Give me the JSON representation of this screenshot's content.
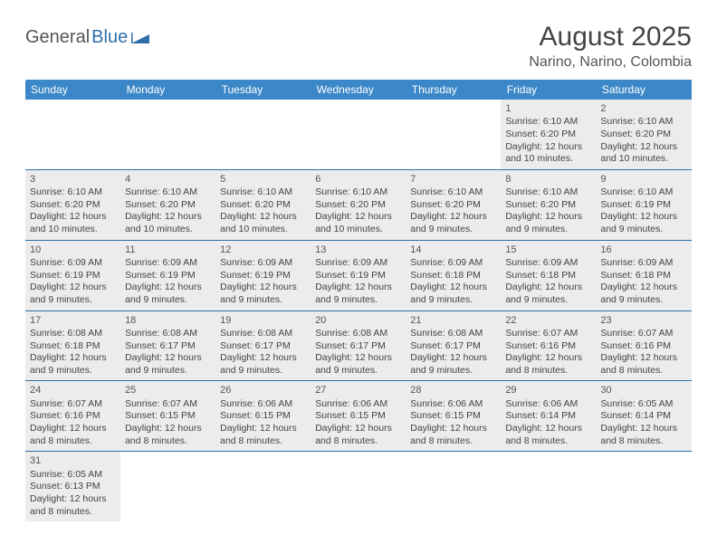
{
  "logo": {
    "part1": "General",
    "part2": "Blue"
  },
  "title": "August 2025",
  "location": "Narino, Narino, Colombia",
  "days": [
    "Sunday",
    "Monday",
    "Tuesday",
    "Wednesday",
    "Thursday",
    "Friday",
    "Saturday"
  ],
  "colors": {
    "header_bg": "#3b87c8",
    "row_border": "#2d6fa8",
    "alt_bg": "#ececec"
  },
  "weeks": [
    [
      null,
      null,
      null,
      null,
      null,
      {
        "n": "1",
        "sr": "6:10 AM",
        "ss": "6:20 PM",
        "dl": "12 hours and 10 minutes."
      },
      {
        "n": "2",
        "sr": "6:10 AM",
        "ss": "6:20 PM",
        "dl": "12 hours and 10 minutes."
      }
    ],
    [
      {
        "n": "3",
        "sr": "6:10 AM",
        "ss": "6:20 PM",
        "dl": "12 hours and 10 minutes."
      },
      {
        "n": "4",
        "sr": "6:10 AM",
        "ss": "6:20 PM",
        "dl": "12 hours and 10 minutes."
      },
      {
        "n": "5",
        "sr": "6:10 AM",
        "ss": "6:20 PM",
        "dl": "12 hours and 10 minutes."
      },
      {
        "n": "6",
        "sr": "6:10 AM",
        "ss": "6:20 PM",
        "dl": "12 hours and 10 minutes."
      },
      {
        "n": "7",
        "sr": "6:10 AM",
        "ss": "6:20 PM",
        "dl": "12 hours and 9 minutes."
      },
      {
        "n": "8",
        "sr": "6:10 AM",
        "ss": "6:20 PM",
        "dl": "12 hours and 9 minutes."
      },
      {
        "n": "9",
        "sr": "6:10 AM",
        "ss": "6:19 PM",
        "dl": "12 hours and 9 minutes."
      }
    ],
    [
      {
        "n": "10",
        "sr": "6:09 AM",
        "ss": "6:19 PM",
        "dl": "12 hours and 9 minutes."
      },
      {
        "n": "11",
        "sr": "6:09 AM",
        "ss": "6:19 PM",
        "dl": "12 hours and 9 minutes."
      },
      {
        "n": "12",
        "sr": "6:09 AM",
        "ss": "6:19 PM",
        "dl": "12 hours and 9 minutes."
      },
      {
        "n": "13",
        "sr": "6:09 AM",
        "ss": "6:19 PM",
        "dl": "12 hours and 9 minutes."
      },
      {
        "n": "14",
        "sr": "6:09 AM",
        "ss": "6:18 PM",
        "dl": "12 hours and 9 minutes."
      },
      {
        "n": "15",
        "sr": "6:09 AM",
        "ss": "6:18 PM",
        "dl": "12 hours and 9 minutes."
      },
      {
        "n": "16",
        "sr": "6:09 AM",
        "ss": "6:18 PM",
        "dl": "12 hours and 9 minutes."
      }
    ],
    [
      {
        "n": "17",
        "sr": "6:08 AM",
        "ss": "6:18 PM",
        "dl": "12 hours and 9 minutes."
      },
      {
        "n": "18",
        "sr": "6:08 AM",
        "ss": "6:17 PM",
        "dl": "12 hours and 9 minutes."
      },
      {
        "n": "19",
        "sr": "6:08 AM",
        "ss": "6:17 PM",
        "dl": "12 hours and 9 minutes."
      },
      {
        "n": "20",
        "sr": "6:08 AM",
        "ss": "6:17 PM",
        "dl": "12 hours and 9 minutes."
      },
      {
        "n": "21",
        "sr": "6:08 AM",
        "ss": "6:17 PM",
        "dl": "12 hours and 9 minutes."
      },
      {
        "n": "22",
        "sr": "6:07 AM",
        "ss": "6:16 PM",
        "dl": "12 hours and 8 minutes."
      },
      {
        "n": "23",
        "sr": "6:07 AM",
        "ss": "6:16 PM",
        "dl": "12 hours and 8 minutes."
      }
    ],
    [
      {
        "n": "24",
        "sr": "6:07 AM",
        "ss": "6:16 PM",
        "dl": "12 hours and 8 minutes."
      },
      {
        "n": "25",
        "sr": "6:07 AM",
        "ss": "6:15 PM",
        "dl": "12 hours and 8 minutes."
      },
      {
        "n": "26",
        "sr": "6:06 AM",
        "ss": "6:15 PM",
        "dl": "12 hours and 8 minutes."
      },
      {
        "n": "27",
        "sr": "6:06 AM",
        "ss": "6:15 PM",
        "dl": "12 hours and 8 minutes."
      },
      {
        "n": "28",
        "sr": "6:06 AM",
        "ss": "6:15 PM",
        "dl": "12 hours and 8 minutes."
      },
      {
        "n": "29",
        "sr": "6:06 AM",
        "ss": "6:14 PM",
        "dl": "12 hours and 8 minutes."
      },
      {
        "n": "30",
        "sr": "6:05 AM",
        "ss": "6:14 PM",
        "dl": "12 hours and 8 minutes."
      }
    ],
    [
      {
        "n": "31",
        "sr": "6:05 AM",
        "ss": "6:13 PM",
        "dl": "12 hours and 8 minutes."
      },
      null,
      null,
      null,
      null,
      null,
      null
    ]
  ],
  "labels": {
    "sunrise": "Sunrise:",
    "sunset": "Sunset:",
    "daylight": "Daylight:"
  }
}
